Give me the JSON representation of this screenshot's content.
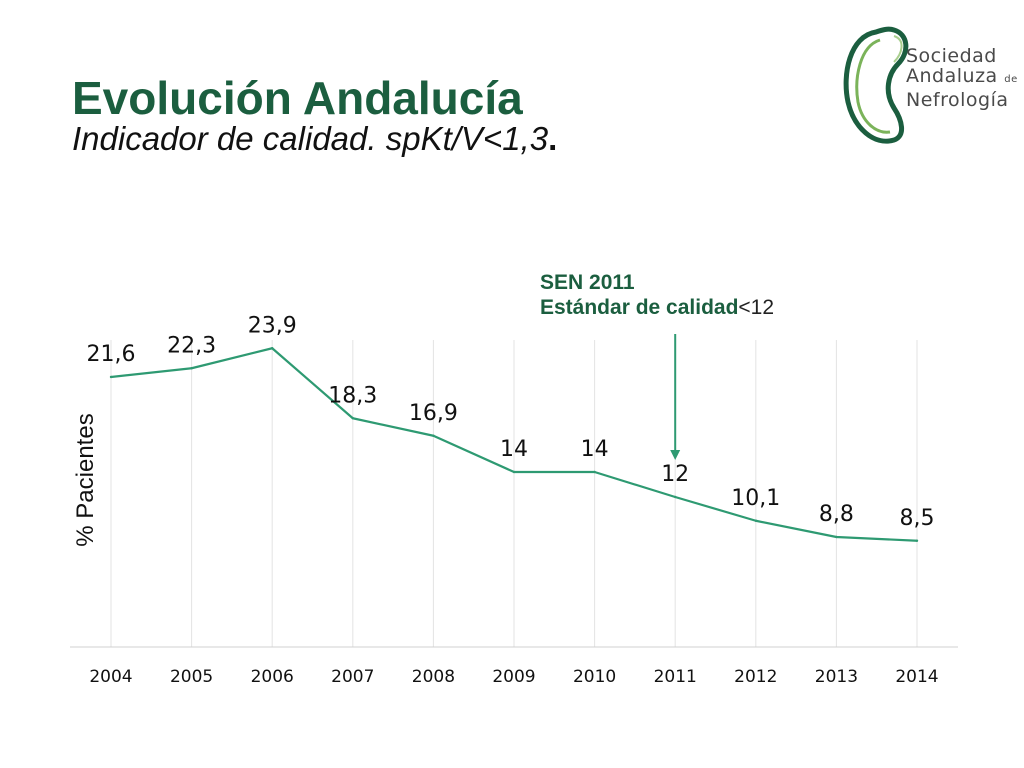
{
  "header": {
    "title": "Evolución Andalucía",
    "subtitle_main": "Indicador de calidad. spKt/V<1,3",
    "subtitle_end": "."
  },
  "logo": {
    "line1": "Sociedad",
    "line2": "Andaluza",
    "line2_small": "de",
    "line3": "Nefrología"
  },
  "annotation": {
    "line1": "SEN 2011",
    "line2_bold": "Estándar de calidad",
    "line2_rest": "<12"
  },
  "colors": {
    "title": "#1b5e3f",
    "line": "#2e9a72",
    "annotation": "#1b5e3f",
    "arrow": "#2e9a72",
    "grid": "#e3e3e3",
    "axis": "#d0d0d0"
  },
  "chart_data": {
    "type": "line",
    "title": "",
    "xlabel": "",
    "ylabel": "% Pacientes",
    "categories": [
      "2004",
      "2005",
      "2006",
      "2007",
      "2008",
      "2009",
      "2010",
      "2011",
      "2012",
      "2013",
      "2014"
    ],
    "values": [
      21.6,
      22.3,
      23.9,
      18.3,
      16.9,
      14,
      14,
      12,
      10.1,
      8.8,
      8.5
    ],
    "data_labels": [
      "21,6",
      "22,3",
      "23,9",
      "18,3",
      "16,9",
      "14",
      "14",
      "12",
      "10,1",
      "8,8",
      "8,5"
    ],
    "ylim": [
      0,
      32
    ],
    "grid": "vertical",
    "legend": "none",
    "annotation_category": "2011"
  }
}
